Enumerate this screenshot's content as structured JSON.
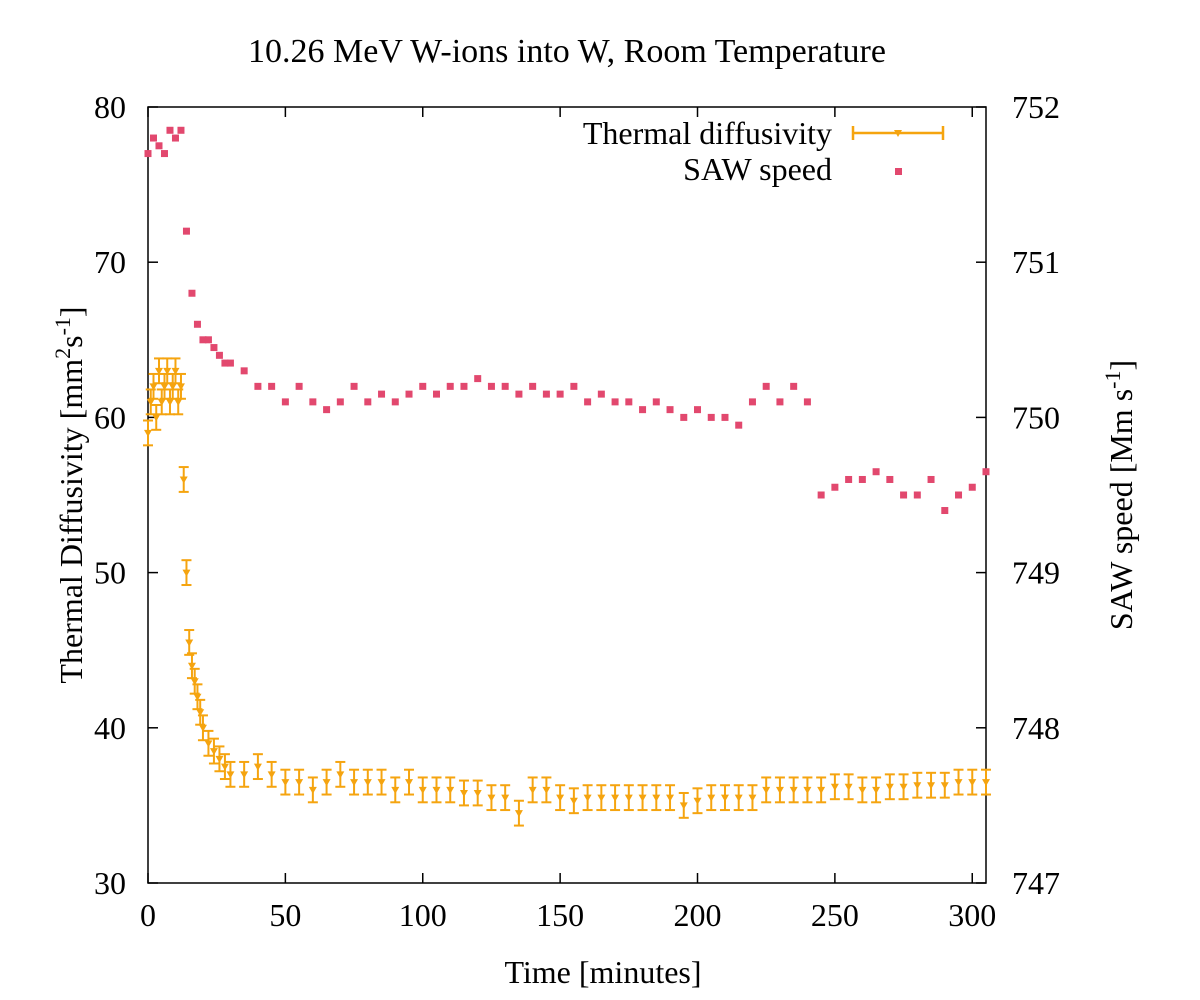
{
  "colors": {
    "thermal": "#f5a40f",
    "saw": "#e2486e",
    "axis": "#000000",
    "background": "#ffffff"
  },
  "chart_data": {
    "type": "scatter",
    "title": "10.26 MeV W-ions into W, Room Temperature",
    "xlabel": "Time [minutes]",
    "ylabel_left": {
      "main": "Thermal Diffusivity [mm",
      "sup1": "2",
      "mid": "s",
      "sup2": "-1",
      "end": "]"
    },
    "ylabel_right": {
      "main": "SAW speed [Mm s",
      "sup": "-1",
      "end": "]"
    },
    "xlim": [
      0,
      305
    ],
    "ylim_left": [
      30,
      80
    ],
    "ylim_right": [
      747,
      752
    ],
    "x_ticks": [
      0,
      50,
      100,
      150,
      200,
      250,
      300
    ],
    "y_ticks_left": [
      30,
      40,
      50,
      60,
      70,
      80
    ],
    "y_ticks_right": [
      747,
      748,
      749,
      750,
      751,
      752
    ],
    "grid": false,
    "legend_position": "top-right",
    "series": [
      {
        "name": "Thermal diffusivity",
        "axis": "left",
        "marker": "triangle-down",
        "errorbars": true,
        "x": [
          0,
          1,
          2,
          3,
          4,
          5,
          6,
          7,
          8,
          9,
          10,
          11,
          12,
          13,
          14,
          15,
          16,
          17,
          18,
          19,
          20,
          22,
          24,
          26,
          28,
          30,
          35,
          40,
          45,
          50,
          55,
          60,
          65,
          70,
          75,
          80,
          85,
          90,
          95,
          100,
          105,
          110,
          115,
          120,
          125,
          130,
          135,
          140,
          145,
          150,
          155,
          160,
          165,
          170,
          175,
          180,
          185,
          190,
          195,
          200,
          205,
          210,
          215,
          220,
          225,
          230,
          235,
          240,
          245,
          250,
          255,
          260,
          265,
          270,
          275,
          280,
          285,
          290,
          295,
          300,
          305
        ],
        "y": [
          59,
          61,
          62,
          60,
          63,
          61,
          62,
          63,
          61,
          62,
          63,
          61,
          62,
          56,
          50,
          45.5,
          44,
          43,
          42,
          41,
          40,
          39,
          38.5,
          38,
          37.5,
          37,
          37,
          37.5,
          37,
          36.5,
          36.5,
          36,
          36.5,
          37,
          36.5,
          36.5,
          36.5,
          36,
          36.5,
          36,
          36,
          36,
          35.8,
          35.8,
          35.5,
          35.5,
          34.5,
          36,
          36,
          35.5,
          35.3,
          35.5,
          35.5,
          35.5,
          35.5,
          35.5,
          35.5,
          35.5,
          35,
          35.3,
          35.5,
          35.5,
          35.5,
          35.5,
          36,
          36,
          36,
          36,
          36,
          36.2,
          36.2,
          36,
          36,
          36.2,
          36.2,
          36.3,
          36.3,
          36.3,
          36.5,
          36.5,
          36.5
        ],
        "yerr": 0.8
      },
      {
        "name": "SAW speed",
        "axis": "right",
        "marker": "square",
        "x": [
          0,
          2,
          4,
          6,
          8,
          10,
          12,
          14,
          16,
          18,
          20,
          22,
          24,
          26,
          28,
          30,
          35,
          40,
          45,
          50,
          55,
          60,
          65,
          70,
          75,
          80,
          85,
          90,
          95,
          100,
          105,
          110,
          115,
          120,
          125,
          130,
          135,
          140,
          145,
          150,
          155,
          160,
          165,
          170,
          175,
          180,
          185,
          190,
          195,
          200,
          205,
          210,
          215,
          220,
          225,
          230,
          235,
          240,
          245,
          250,
          255,
          260,
          265,
          270,
          275,
          280,
          285,
          290,
          295,
          300,
          305
        ],
        "y": [
          751.7,
          751.8,
          751.75,
          751.7,
          751.85,
          751.8,
          751.85,
          751.2,
          750.8,
          750.6,
          750.5,
          750.5,
          750.45,
          750.4,
          750.35,
          750.35,
          750.3,
          750.2,
          750.2,
          750.1,
          750.2,
          750.1,
          750.05,
          750.1,
          750.2,
          750.1,
          750.15,
          750.1,
          750.15,
          750.2,
          750.15,
          750.2,
          750.2,
          750.25,
          750.2,
          750.2,
          750.15,
          750.2,
          750.15,
          750.15,
          750.2,
          750.1,
          750.15,
          750.1,
          750.1,
          750.05,
          750.1,
          750.05,
          750.0,
          750.05,
          750.0,
          750.0,
          749.95,
          750.1,
          750.2,
          750.1,
          750.2,
          750.1,
          749.5,
          749.55,
          749.6,
          749.6,
          749.65,
          749.6,
          749.5,
          749.5,
          749.6,
          749.4,
          749.5,
          749.55,
          749.65
        ]
      }
    ]
  }
}
